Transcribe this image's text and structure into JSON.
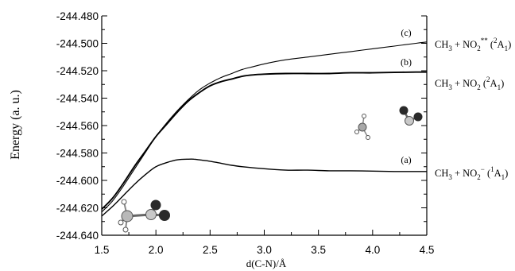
{
  "chart_data": {
    "type": "line",
    "title": "",
    "xlabel": "d(C-N)/Å",
    "ylabel": "Energy (a. u.)",
    "xlim": [
      1.5,
      4.5
    ],
    "ylim": [
      -244.64,
      -244.48
    ],
    "x_ticks": [
      1.5,
      2.0,
      2.5,
      3.0,
      3.5,
      4.0,
      4.5
    ],
    "x_tick_labels": [
      "1.5",
      "2.0",
      "2.5",
      "3.0",
      "3.5",
      "4.0",
      "4.5"
    ],
    "y_ticks": [
      -244.48,
      -244.5,
      -244.52,
      -244.54,
      -244.56,
      -244.58,
      -244.6,
      -244.62,
      -244.64
    ],
    "y_tick_labels": [
      "-244.480",
      "-244.500",
      "-244.520",
      "-244.540",
      "-244.560",
      "-244.580",
      "-244.600",
      "-244.620",
      "-244.640"
    ],
    "grid": false,
    "series": [
      {
        "tag": "(c)",
        "annotation": {
          "prefix": "CH",
          "sub1": "3",
          "mid": " + NO",
          "sub2": "2",
          "sup1": "**",
          "paren_open": " (",
          "sup2": "2",
          "term": "A",
          "sub3": "1",
          "paren_close": ")"
        },
        "color": "#000000",
        "x": [
          1.5,
          1.6,
          1.7,
          1.8,
          1.9,
          2.0,
          2.1,
          2.2,
          2.3,
          2.4,
          2.5,
          2.6,
          2.7,
          2.8,
          2.9,
          3.0,
          3.2,
          3.4,
          3.6,
          3.8,
          4.0,
          4.2,
          4.4,
          4.5
        ],
        "y": [
          -244.623,
          -244.615,
          -244.604,
          -244.592,
          -244.58,
          -244.568,
          -244.558,
          -244.549,
          -244.541,
          -244.534,
          -244.529,
          -244.525,
          -244.522,
          -244.519,
          -244.517,
          -244.515,
          -244.512,
          -244.51,
          -244.508,
          -244.506,
          -244.504,
          -244.502,
          -244.5,
          -244.499
        ]
      },
      {
        "tag": "(b)",
        "annotation": {
          "prefix": "CH",
          "sub1": "3",
          "mid": " + NO",
          "sub2": "2",
          "sup1": "",
          "paren_open": " (",
          "sup2": "2",
          "term": "A",
          "sub3": "1",
          "paren_close": ")"
        },
        "color": "#000000",
        "x": [
          1.5,
          1.6,
          1.7,
          1.8,
          1.9,
          2.0,
          2.1,
          2.2,
          2.3,
          2.4,
          2.5,
          2.6,
          2.7,
          2.8,
          2.9,
          3.0,
          3.2,
          3.4,
          3.6,
          3.8,
          4.0,
          4.2,
          4.4,
          4.5
        ],
        "y": [
          -244.621,
          -244.613,
          -244.602,
          -244.59,
          -244.579,
          -244.568,
          -244.559,
          -244.55,
          -244.542,
          -244.536,
          -244.531,
          -244.528,
          -244.526,
          -244.524,
          -244.523,
          -244.5225,
          -244.522,
          -244.522,
          -244.522,
          -244.5215,
          -244.5215,
          -244.5212,
          -244.521,
          -244.521
        ]
      },
      {
        "tag": "(a)",
        "annotation": {
          "prefix": "CH",
          "sub1": "3",
          "mid": " + NO",
          "sub2": "2",
          "sup1": "−",
          "paren_open": " (",
          "sup2": "1",
          "term": "A",
          "sub3": "1",
          "paren_close": ")"
        },
        "color": "#000000",
        "x": [
          1.5,
          1.6,
          1.7,
          1.8,
          1.9,
          2.0,
          2.1,
          2.2,
          2.3,
          2.35,
          2.4,
          2.5,
          2.6,
          2.7,
          2.8,
          3.0,
          3.2,
          3.4,
          3.6,
          3.8,
          4.0,
          4.2,
          4.4,
          4.5
        ],
        "y": [
          -244.626,
          -244.619,
          -244.611,
          -244.603,
          -244.596,
          -244.59,
          -244.587,
          -244.585,
          -244.5845,
          -244.5845,
          -244.585,
          -244.586,
          -244.5875,
          -244.589,
          -244.59,
          -244.5915,
          -244.5925,
          -244.5925,
          -244.593,
          -244.593,
          -244.5932,
          -244.5935,
          -244.5935,
          -244.5935
        ]
      }
    ]
  }
}
